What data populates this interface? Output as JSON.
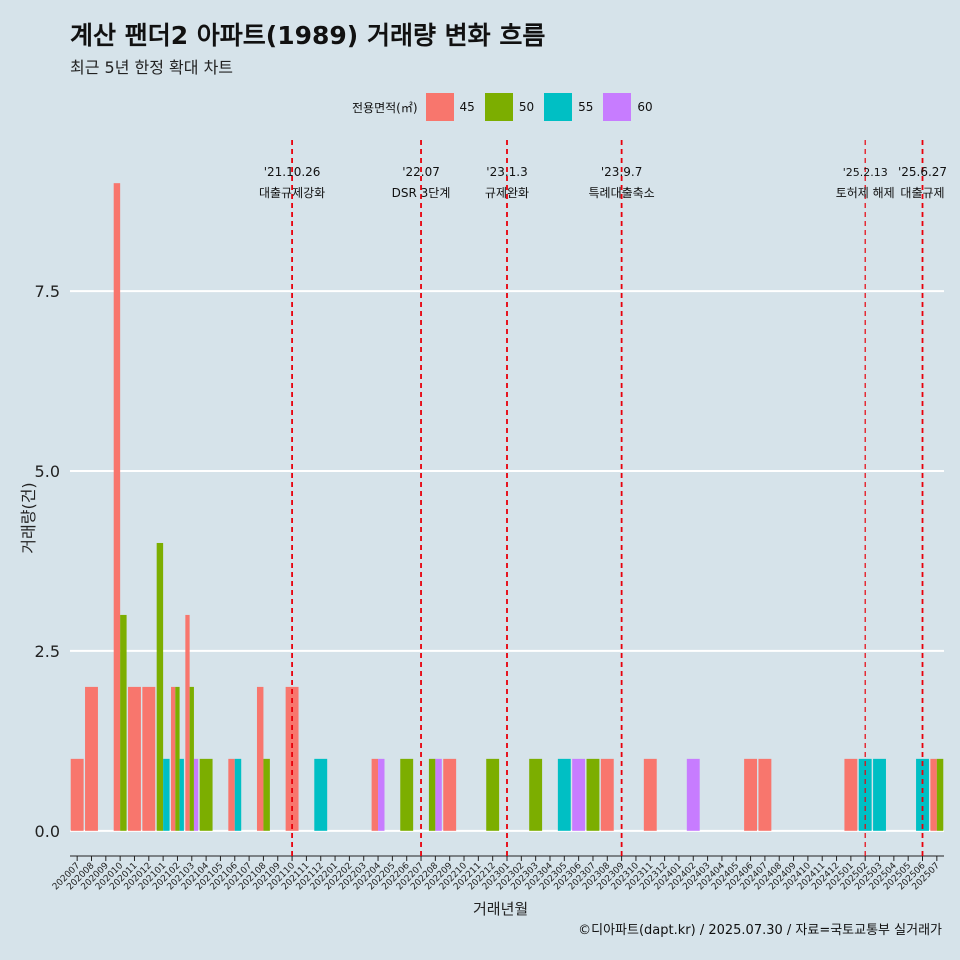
{
  "chart_data": {
    "type": "bar",
    "title": "계산 팬더2 아파트(1989) 거래량 변화 흐름",
    "subtitle": "최근 5년 한정 확대 차트",
    "xlabel": "거래년월",
    "ylabel": "거래량(건)",
    "legend_title": "전용면적(㎡)",
    "legend_position": "top",
    "grid": true,
    "ylim": [
      -0.35,
      9.6
    ],
    "yticks": [
      0.0,
      2.5,
      5.0,
      7.5
    ],
    "ytick_labels": [
      "0.0",
      "2.5",
      "5.0",
      "7.5"
    ],
    "categories": [
      "202007",
      "202008",
      "202009",
      "202010",
      "202011",
      "202012",
      "202101",
      "202102",
      "202103",
      "202104",
      "202105",
      "202106",
      "202107",
      "202108",
      "202109",
      "202110",
      "202111",
      "202112",
      "202201",
      "202202",
      "202203",
      "202204",
      "202205",
      "202206",
      "202207",
      "202208",
      "202209",
      "202210",
      "202211",
      "202212",
      "202301",
      "202302",
      "202303",
      "202304",
      "202305",
      "202306",
      "202307",
      "202308",
      "202309",
      "202310",
      "202311",
      "202312",
      "202401",
      "202402",
      "202403",
      "202404",
      "202405",
      "202406",
      "202407",
      "202408",
      "202409",
      "202410",
      "202411",
      "202412",
      "202501",
      "202502",
      "202503",
      "202504",
      "202505",
      "202506",
      "202507"
    ],
    "series": [
      {
        "name": "45",
        "color": "#f8766d"
      },
      {
        "name": "50",
        "color": "#7cae00"
      },
      {
        "name": "55",
        "color": "#00bfc4"
      },
      {
        "name": "60",
        "color": "#c77cff"
      }
    ],
    "bars": [
      {
        "x": "202007",
        "area": "45",
        "value": 1
      },
      {
        "x": "202008",
        "area": "45",
        "value": 2
      },
      {
        "x": "202010",
        "area": "45",
        "value": 9
      },
      {
        "x": "202010",
        "area": "50",
        "value": 3
      },
      {
        "x": "202011",
        "area": "45",
        "value": 2
      },
      {
        "x": "202012",
        "area": "45",
        "value": 2
      },
      {
        "x": "202101",
        "area": "50",
        "value": 4
      },
      {
        "x": "202101",
        "area": "55",
        "value": 1
      },
      {
        "x": "202102",
        "area": "45",
        "value": 2
      },
      {
        "x": "202102",
        "area": "50",
        "value": 2
      },
      {
        "x": "202102",
        "area": "55",
        "value": 1
      },
      {
        "x": "202103",
        "area": "45",
        "value": 3
      },
      {
        "x": "202103",
        "area": "50",
        "value": 2
      },
      {
        "x": "202103",
        "area": "60",
        "value": 1
      },
      {
        "x": "202104",
        "area": "50",
        "value": 1
      },
      {
        "x": "202106",
        "area": "45",
        "value": 1
      },
      {
        "x": "202106",
        "area": "55",
        "value": 1
      },
      {
        "x": "202108",
        "area": "45",
        "value": 2
      },
      {
        "x": "202108",
        "area": "50",
        "value": 1
      },
      {
        "x": "202110",
        "area": "45",
        "value": 2
      },
      {
        "x": "202112",
        "area": "55",
        "value": 1
      },
      {
        "x": "202204",
        "area": "45",
        "value": 1
      },
      {
        "x": "202204",
        "area": "60",
        "value": 1
      },
      {
        "x": "202206",
        "area": "50",
        "value": 1
      },
      {
        "x": "202208",
        "area": "50",
        "value": 1
      },
      {
        "x": "202208",
        "area": "60",
        "value": 1
      },
      {
        "x": "202209",
        "area": "45",
        "value": 1
      },
      {
        "x": "202212",
        "area": "50",
        "value": 1
      },
      {
        "x": "202303",
        "area": "50",
        "value": 1
      },
      {
        "x": "202305",
        "area": "55",
        "value": 1
      },
      {
        "x": "202306",
        "area": "60",
        "value": 1
      },
      {
        "x": "202307",
        "area": "50",
        "value": 1
      },
      {
        "x": "202308",
        "area": "45",
        "value": 1
      },
      {
        "x": "202311",
        "area": "45",
        "value": 1
      },
      {
        "x": "202402",
        "area": "60",
        "value": 1
      },
      {
        "x": "202406",
        "area": "45",
        "value": 1
      },
      {
        "x": "202407",
        "area": "45",
        "value": 1
      },
      {
        "x": "202501",
        "area": "45",
        "value": 1
      },
      {
        "x": "202502",
        "area": "55",
        "value": 1
      },
      {
        "x": "202503",
        "area": "55",
        "value": 1
      },
      {
        "x": "202506",
        "area": "55",
        "value": 1
      },
      {
        "x": "202507",
        "area": "45",
        "value": 1
      },
      {
        "x": "202507",
        "area": "50",
        "value": 1
      }
    ],
    "annotations": [
      {
        "x": "202110",
        "date_label": "'21.10.26",
        "text": "대출규제강화"
      },
      {
        "x": "202207",
        "date_label": "'22.07",
        "text": "DSR 3단계"
      },
      {
        "x": "202301",
        "date_label": "'23.1.3",
        "text": "규제완화"
      },
      {
        "x": "202309",
        "date_label": "'23.9.7",
        "text": "특례대출축소"
      },
      {
        "x": "202502",
        "date_label": "'25.2.13",
        "text": "토허제 해제"
      },
      {
        "x": "202506",
        "date_label": "'25.6.27",
        "text": "대출규제"
      }
    ],
    "reference_line_color": "#e8000b",
    "gridline_color": "#ffffff"
  },
  "caption": "©디아파트(dapt.kr) / 2025.07.30 / 자료=국토교통부 실거래가"
}
